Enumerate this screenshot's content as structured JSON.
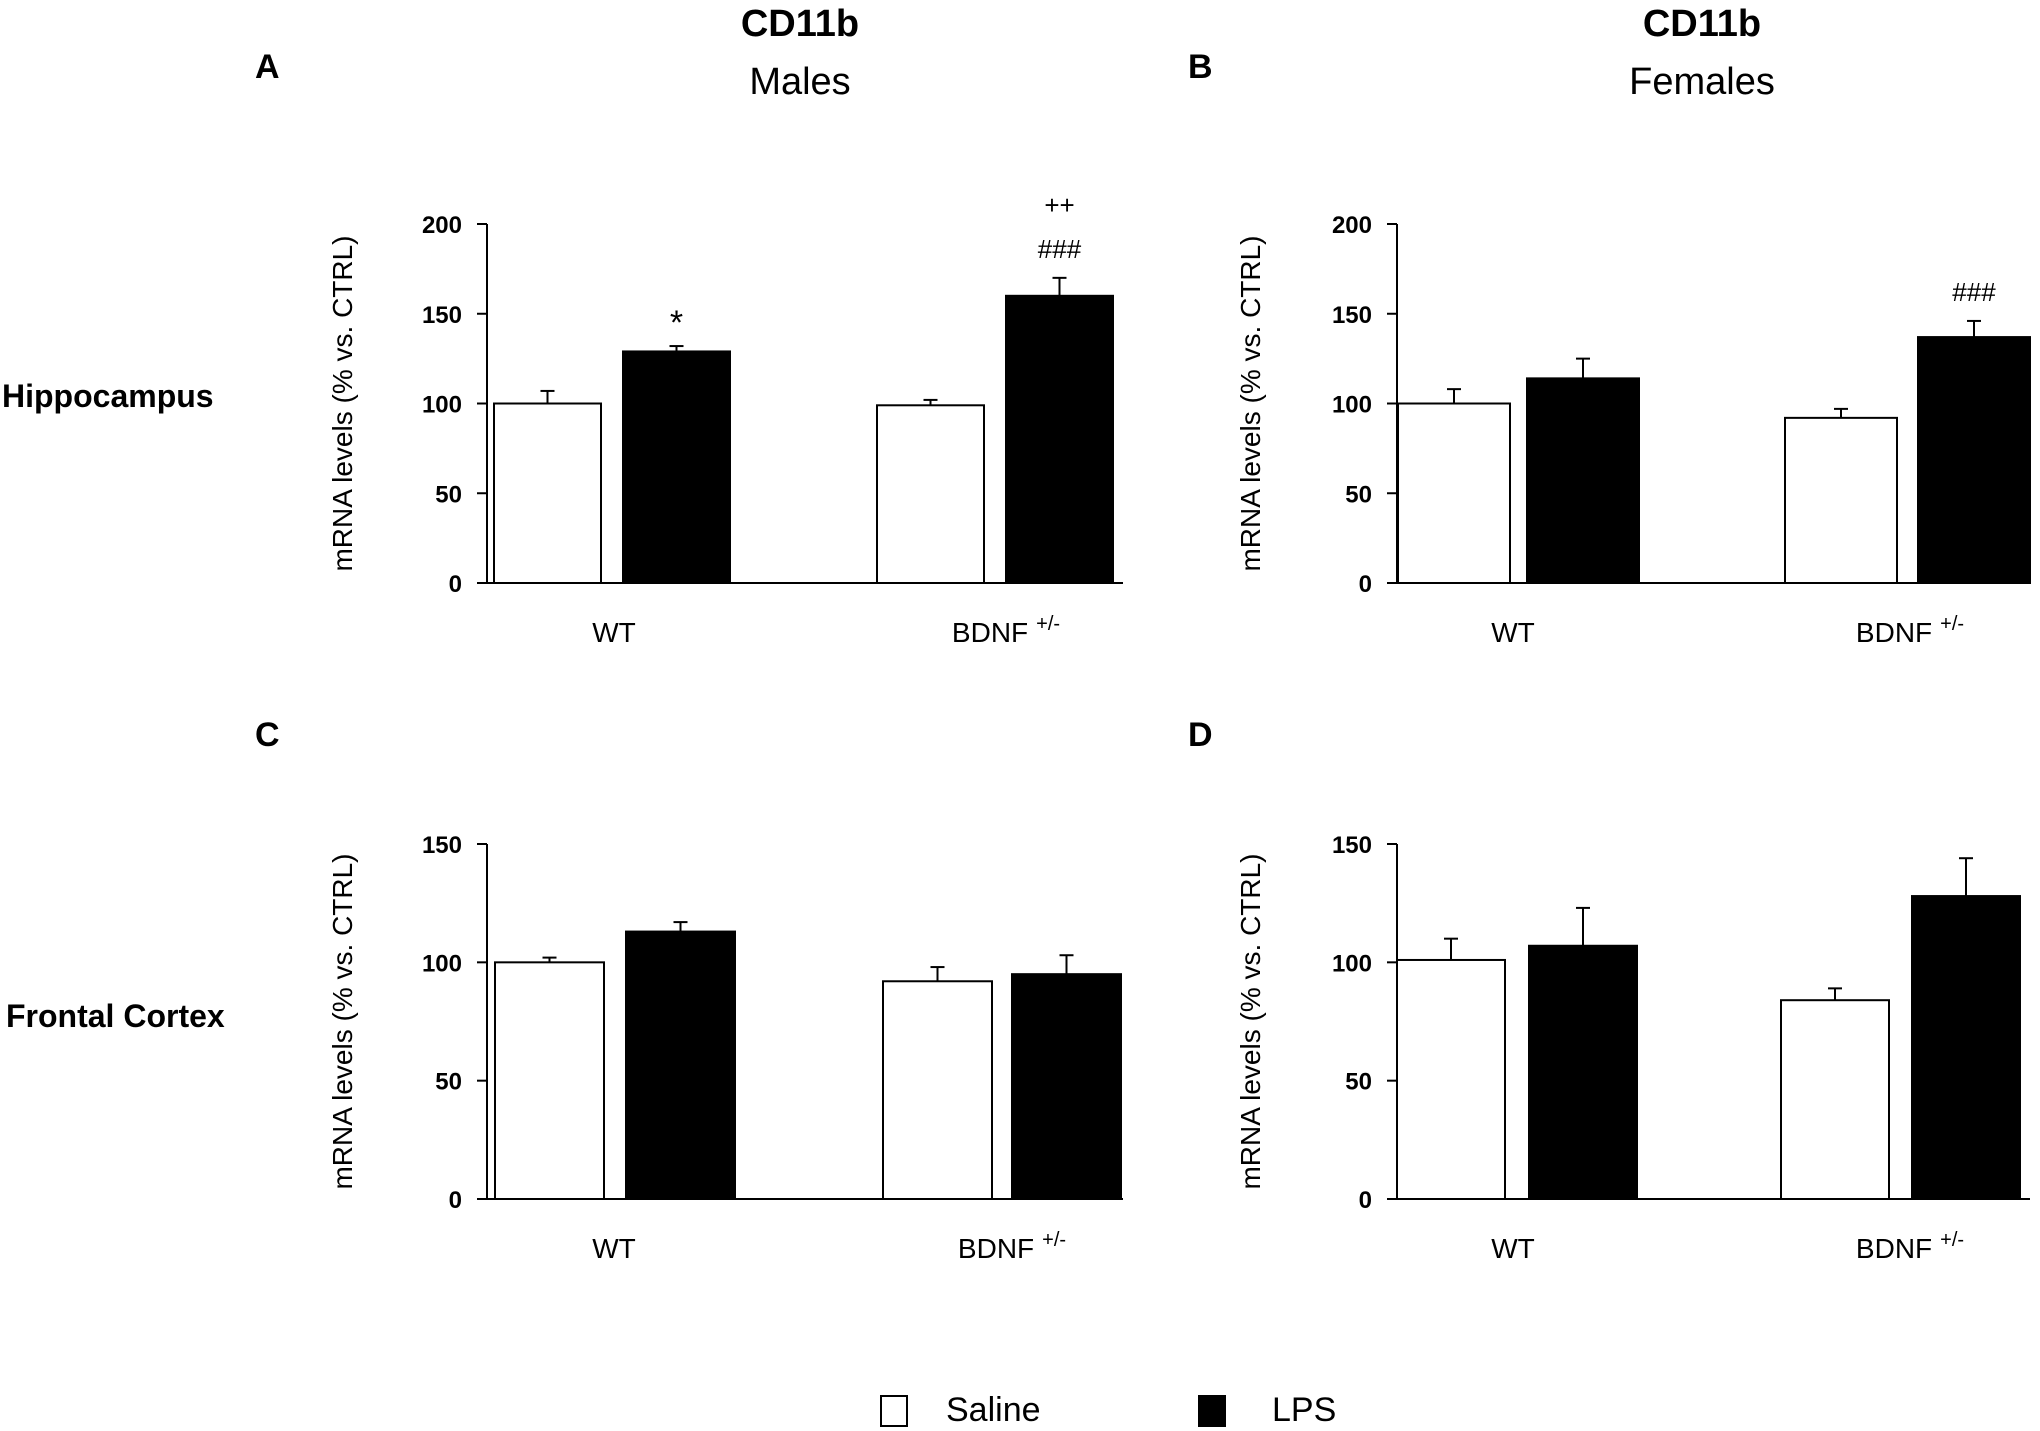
{
  "columns": [
    {
      "marker": "CD11b",
      "group": "Males"
    },
    {
      "marker": "CD11b",
      "group": "Females"
    }
  ],
  "rows": [
    "Hippocampus",
    "Frontal Cortex"
  ],
  "legend": [
    {
      "label": "Saline",
      "color": "#ffffff"
    },
    {
      "label": "LPS",
      "color": "#000000"
    }
  ],
  "colors": {
    "saline": "#ffffff",
    "lps": "#000000",
    "axis": "#000000"
  },
  "chart_data": [
    {
      "type": "bar",
      "panel": "A",
      "region": "Hippocampus",
      "sex": "Males",
      "ylabel": "mRNA levels (% vs. CTRL)",
      "categories": [
        "WT",
        "BDNF"
      ],
      "category_sup": [
        "",
        "+/-"
      ],
      "ylim": [
        0,
        200
      ],
      "yticks": [
        0,
        50,
        100,
        150,
        200
      ],
      "series": [
        {
          "name": "Saline",
          "values": [
            100,
            99
          ],
          "errors": [
            7,
            3
          ]
        },
        {
          "name": "LPS",
          "values": [
            129,
            160
          ],
          "errors": [
            3,
            10
          ]
        }
      ],
      "annotations": [
        {
          "series": 1,
          "category": 0,
          "lines": [
            "*"
          ]
        },
        {
          "series": 1,
          "category": 1,
          "lines": [
            "++",
            "###"
          ]
        }
      ]
    },
    {
      "type": "bar",
      "panel": "B",
      "region": "Hippocampus",
      "sex": "Females",
      "ylabel": "mRNA levels (% vs. CTRL)",
      "categories": [
        "WT",
        "BDNF"
      ],
      "category_sup": [
        "",
        "+/-"
      ],
      "ylim": [
        0,
        200
      ],
      "yticks": [
        0,
        50,
        100,
        150,
        200
      ],
      "series": [
        {
          "name": "Saline",
          "values": [
            100,
            92
          ],
          "errors": [
            8,
            5
          ]
        },
        {
          "name": "LPS",
          "values": [
            114,
            137
          ],
          "errors": [
            11,
            9
          ]
        }
      ],
      "annotations": [
        {
          "series": 1,
          "category": 1,
          "lines": [
            "###"
          ]
        }
      ]
    },
    {
      "type": "bar",
      "panel": "C",
      "region": "Frontal Cortex",
      "sex": "Males",
      "ylabel": "mRNA levels (% vs. CTRL)",
      "categories": [
        "WT",
        "BDNF"
      ],
      "category_sup": [
        "",
        "+/-"
      ],
      "ylim": [
        0,
        150
      ],
      "yticks": [
        0,
        50,
        100,
        150
      ],
      "series": [
        {
          "name": "Saline",
          "values": [
            100,
            92
          ],
          "errors": [
            2,
            6
          ]
        },
        {
          "name": "LPS",
          "values": [
            113,
            95
          ],
          "errors": [
            4,
            8
          ]
        }
      ],
      "annotations": []
    },
    {
      "type": "bar",
      "panel": "D",
      "region": "Frontal Cortex",
      "sex": "Females",
      "ylabel": "mRNA levels (% vs. CTRL)",
      "categories": [
        "WT",
        "BDNF"
      ],
      "category_sup": [
        "",
        "+/-"
      ],
      "ylim": [
        0,
        150
      ],
      "yticks": [
        0,
        50,
        100,
        150
      ],
      "series": [
        {
          "name": "Saline",
          "values": [
            101,
            84
          ],
          "errors": [
            9,
            5
          ]
        },
        {
          "name": "LPS",
          "values": [
            107,
            128
          ],
          "errors": [
            16,
            16
          ]
        }
      ],
      "annotations": []
    }
  ]
}
